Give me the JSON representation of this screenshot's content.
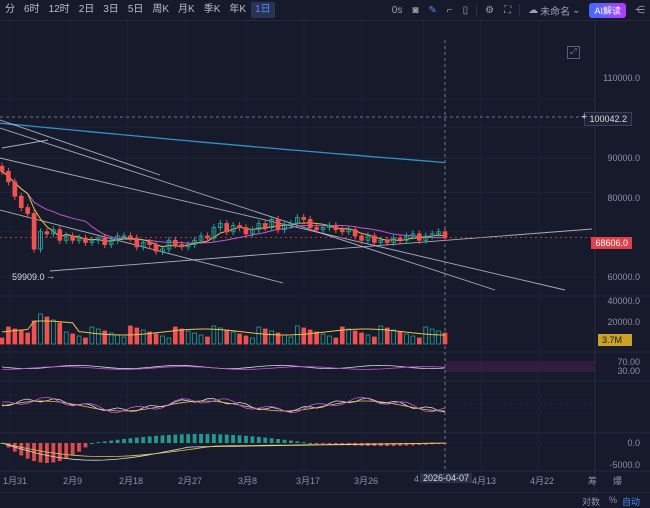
{
  "toolbar": {
    "timeframes": [
      "分",
      "6时",
      "12时",
      "2日",
      "3日",
      "5日",
      "周K",
      "月K",
      "季K",
      "年K",
      "1日"
    ],
    "active_timeframe": "1日",
    "clock": "0s",
    "unsaved_label": "未命名",
    "ai_label": "AI解读"
  },
  "price_axis": {
    "labels": [
      "110000.0",
      "90000.0",
      "80000.0",
      "60000.0",
      "40000.0",
      "20000.0",
      "70.00",
      "30.00",
      "0.0",
      "-5000.0"
    ],
    "crosshair_price": "100042.2",
    "last_price": "68606.0",
    "volume_value": "3.7M",
    "low_marker": "59909.0"
  },
  "time_axis": {
    "labels": [
      "1月31",
      "2月9",
      "2月18",
      "2月27",
      "3月8",
      "3月17",
      "3月26",
      "4",
      "4月13",
      "4月22"
    ],
    "crosshair_date": "2026-04-07"
  },
  "footer": {
    "right_a": "筹",
    "right_b": "爆",
    "scale_label": "对数",
    "percent_label": "%",
    "auto_label": "自动"
  },
  "colors": {
    "up": "#26a69a",
    "down": "#ef5350",
    "ma_yellow": "#e8c54a",
    "ma_purple": "#c455d6",
    "ma_blue": "#2f93c8",
    "accent": "#4f8bff",
    "background": "#161a2b"
  },
  "chart_data": {
    "type": "candlestick",
    "closes": [
      86000,
      83000,
      79000,
      76000,
      74500,
      66000,
      70000,
      69500,
      70500,
      68000,
      69000,
      68000,
      68500,
      67500,
      68000,
      68500,
      67000,
      68000,
      69000,
      69000,
      68500,
      66500,
      67500,
      67000,
      65500,
      66000,
      68000,
      67000,
      66500,
      67000,
      68000,
      69000,
      68500,
      71000,
      72000,
      70000,
      71500,
      71000,
      69500,
      70500,
      72000,
      71000,
      73000,
      70500,
      71500,
      72000,
      73500,
      73000,
      71000,
      70500,
      71000,
      71500,
      70500,
      70000,
      70500,
      69000,
      68000,
      69000,
      67500,
      68000,
      67500,
      68500,
      68000,
      69000,
      69500,
      68000,
      69000,
      69500,
      70000,
      68606
    ],
    "volume_pattern": "red/green bars, mostly 5M-25M, peak ~30M in early February",
    "overlays": [
      "MA short (yellow)",
      "MA mid (purple)",
      "MA long (blue)",
      "descending trendlines",
      "ascending support line"
    ],
    "yscale": "log",
    "ylim": [
      40000,
      115000
    ]
  }
}
